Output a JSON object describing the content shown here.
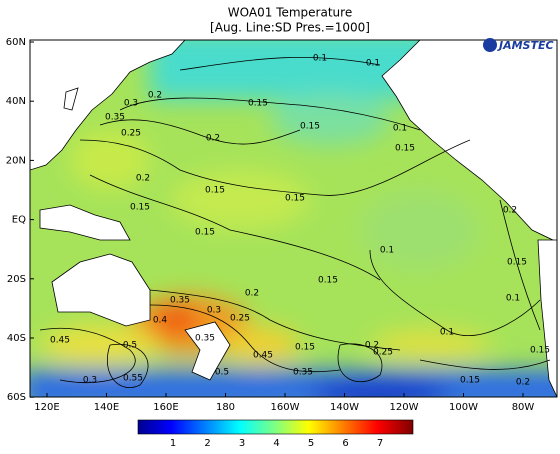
{
  "title": "WOA01 Temperature",
  "subtitle": "[Aug. Line:SD  Pres.=1000]",
  "logo": "JAMSTEC",
  "lat_labels": [
    "60N",
    "40N",
    "20N",
    "EQ",
    "20S",
    "40S",
    "60S"
  ],
  "lon_labels": [
    "120E",
    "140E",
    "160E",
    "180",
    "160W",
    "140W",
    "120W",
    "100W",
    "80W"
  ],
  "colorbar": {
    "ticks": [
      "1",
      "2",
      "3",
      "4",
      "5",
      "6",
      "7"
    ]
  },
  "contour_labels": [
    "0.1",
    "0.1",
    "0.2",
    "0.15",
    "0.3",
    "0.35",
    "0.25",
    "0.2",
    "0.15",
    "0.1",
    "0.15",
    "0.2",
    "0.15",
    "0.15",
    "0.15",
    "0.15",
    "0.2",
    "0.1",
    "0.15",
    "0.15",
    "0.1",
    "0.2",
    "0.35",
    "0.3",
    "0.25",
    "0.4",
    "0.1",
    "0.15",
    "0.2",
    "0.25",
    "0.45",
    "0.5",
    "0.35",
    "0.45",
    "0.15",
    "0.3",
    "0.35",
    "0.5",
    "0.2",
    "0.15",
    "0.55"
  ]
}
